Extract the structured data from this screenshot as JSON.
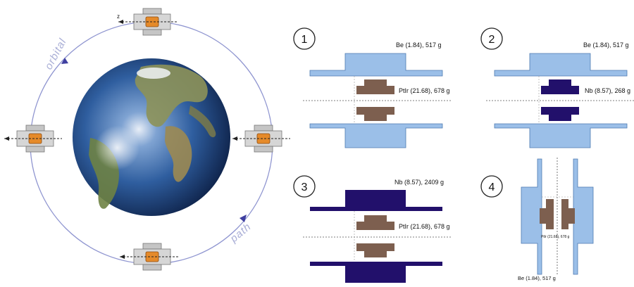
{
  "orbit": {
    "word_left": "orbital",
    "word_right": "path",
    "axis_letter": "z"
  },
  "panels": [
    {
      "number": "1",
      "shell_label": "Be (1.84), 517 g",
      "core_label": "PtIr (21.68), 678 g",
      "shell_color": "#9bbfe8",
      "core_color": "#7d5f4f"
    },
    {
      "number": "2",
      "shell_label": "Be (1.84), 517 g",
      "core_label": "Nb (8.57), 268 g",
      "shell_color": "#9bbfe8",
      "core_color": "#22106b"
    },
    {
      "number": "3",
      "shell_label": "Nb (8.57), 2409 g",
      "core_label": "PtIr (21.68), 678 g",
      "shell_color": "#22106b",
      "core_color": "#7d5f4f"
    },
    {
      "number": "4",
      "shell_label": "Be (1.84), 517 g",
      "core_label": "PtIr (21.68), 678 g",
      "shell_color": "#9bbfe8",
      "core_color": "#7d5f4f"
    }
  ],
  "colors": {
    "orbit_line": "#8f95d0",
    "satellite_body": "#b9b9b9",
    "satellite_core": "#e58a2a",
    "earth_ocean": "#2d5fa3",
    "earth_land": "#7c8a4a"
  }
}
